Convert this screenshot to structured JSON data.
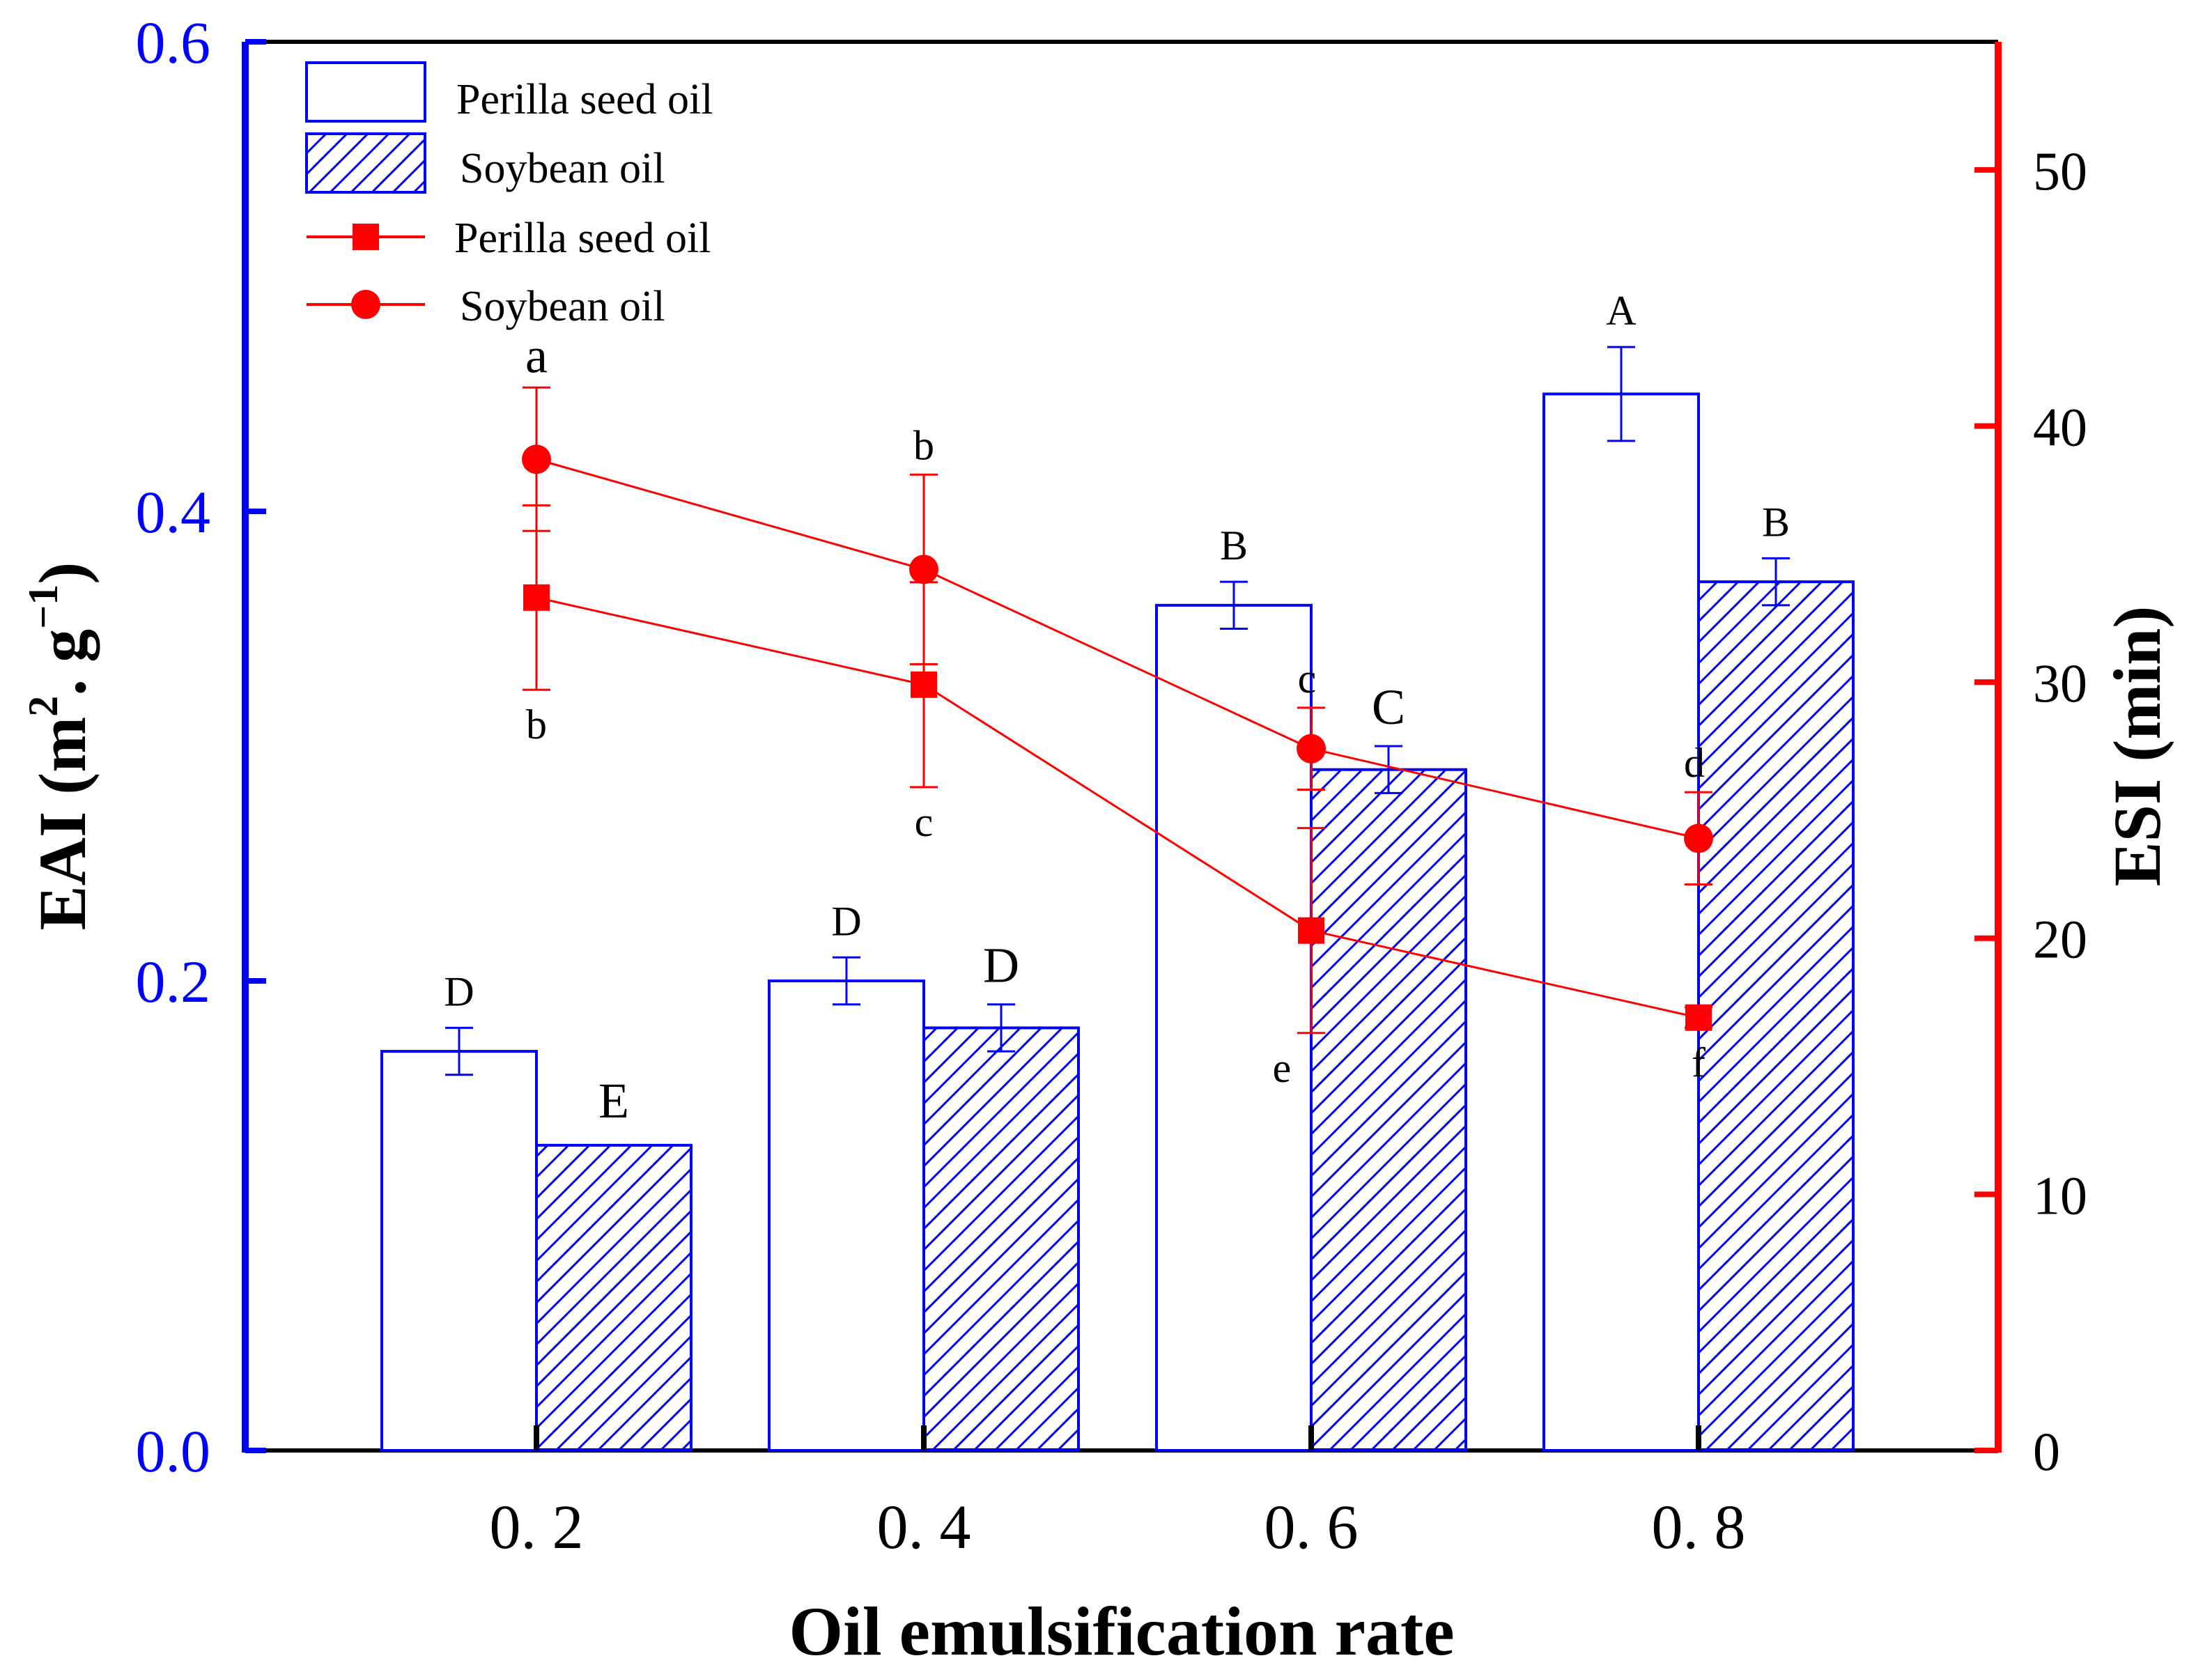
{
  "chart_data": {
    "type": "bar+line",
    "xlabel": "Oil emulsification rate",
    "categories": [
      "0. 2",
      "0. 4",
      "0. 6",
      "0. 8"
    ],
    "x_values": [
      0.2,
      0.4,
      0.6,
      0.8
    ],
    "left_axis": {
      "label_main": "EAI (m",
      "label_sup1": "2",
      "label_mid": ". g",
      "label_sup2": "−1",
      "label_end": ")",
      "ylim": [
        0,
        0.6
      ],
      "ticks": [
        0.0,
        0.2,
        0.4,
        0.6
      ],
      "tick_labels": [
        "0.0",
        "0.2",
        "0.4",
        "0.6"
      ],
      "color": "#0000ff"
    },
    "right_axis": {
      "label": "ESI (min)",
      "ylim": [
        0,
        55
      ],
      "ticks": [
        0,
        10,
        20,
        30,
        40,
        50
      ],
      "tick_labels": [
        "0",
        "10",
        "20",
        "30",
        "40",
        "50"
      ],
      "color": "#ff0000"
    },
    "bar_series": [
      {
        "name": "Perilla seed oil",
        "pattern": "open",
        "values": [
          0.17,
          0.2,
          0.36,
          0.45
        ],
        "errors": [
          0.01,
          0.01,
          0.01,
          0.02
        ],
        "letters": [
          "D",
          "D",
          "B",
          "A"
        ]
      },
      {
        "name": "Soybean oil",
        "pattern": "hatched",
        "values": [
          0.13,
          0.18,
          0.29,
          0.37
        ],
        "errors": [
          0,
          0.01,
          0.01,
          0.01
        ],
        "letters": [
          "E",
          "D",
          "C",
          "B"
        ]
      }
    ],
    "line_series": [
      {
        "name": "Perilla seed oil",
        "marker": "square",
        "values": [
          33.3,
          29.9,
          20.3,
          16.9
        ],
        "errors": [
          3.6,
          4.0,
          4.0,
          0.4
        ],
        "letters": [
          "b",
          "c",
          "e",
          "f"
        ]
      },
      {
        "name": "Soybean oil",
        "marker": "circle",
        "values": [
          38.7,
          34.4,
          27.4,
          23.9
        ],
        "errors": [
          2.8,
          3.7,
          1.6,
          1.8
        ],
        "letters": [
          "a",
          "b",
          "c",
          "d"
        ]
      }
    ],
    "legend": [
      {
        "label": "Perilla seed oil",
        "kind": "bar-open"
      },
      {
        "label": "Soybean oil",
        "kind": "bar-hatched"
      },
      {
        "label": "Perilla seed oil",
        "kind": "line-square"
      },
      {
        "label": "Soybean oil",
        "kind": "line-circle"
      }
    ],
    "legend_position": "top-left",
    "bar_color": "#0000ff",
    "line_color": "#ff0000",
    "axis_color": "#000000"
  }
}
